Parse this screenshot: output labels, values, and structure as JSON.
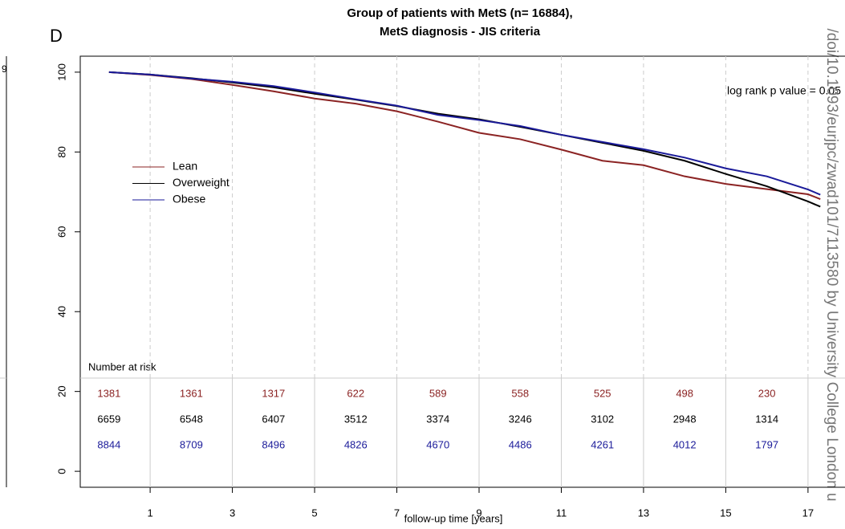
{
  "chart_data": {
    "type": "line",
    "panel_label": "D",
    "title": "Group of patients with MetS (n= 16884),",
    "subtitle": "MetS diagnosis - JIS criteria",
    "annotation": "log rank p value = 0.05",
    "x_label": "follow-up time [years]",
    "risk_table_title": "Number at risk",
    "x": [
      0,
      1,
      2,
      3,
      4,
      5,
      6,
      7,
      8,
      9,
      10,
      11,
      12,
      13,
      14,
      15,
      16,
      17,
      17.3
    ],
    "series": [
      {
        "name": "Lean",
        "color": "#8b2323",
        "values": [
          100,
          99.3,
          98.3,
          96.8,
          95.2,
          93.4,
          92.1,
          90.2,
          87.6,
          84.8,
          83.2,
          80.6,
          77.8,
          76.7,
          73.9,
          72,
          70.7,
          69.4,
          68.2
        ],
        "at_risk": [
          1381,
          1361,
          1317,
          622,
          589,
          558,
          525,
          498,
          230
        ]
      },
      {
        "name": "Overweight",
        "color": "#000000",
        "values": [
          100,
          99.4,
          98.5,
          97.4,
          96.2,
          94.6,
          93.1,
          91.5,
          89.6,
          88.2,
          86.3,
          84.3,
          82.3,
          80.3,
          77.8,
          74.5,
          71.4,
          67.6,
          66.3
        ],
        "at_risk": [
          6659,
          6548,
          6407,
          3512,
          3374,
          3246,
          3102,
          2948,
          1314
        ]
      },
      {
        "name": "Obese",
        "color": "#1a1a99",
        "values": [
          100,
          99.4,
          98.4,
          97.6,
          96.5,
          94.9,
          93.2,
          91.6,
          89.3,
          88,
          86.5,
          84.3,
          82.5,
          80.7,
          78.6,
          75.9,
          73.9,
          70.6,
          69.3
        ],
        "at_risk": [
          8844,
          8709,
          8496,
          4826,
          4670,
          4486,
          4261,
          4012,
          1797
        ]
      }
    ],
    "xlim": [
      -0.7,
      17.9
    ],
    "xticks": [
      1,
      3,
      5,
      7,
      9,
      11,
      13,
      15,
      17
    ],
    "ylim": [
      -4,
      104
    ],
    "yticks": [
      0,
      20,
      40,
      60,
      80,
      100
    ],
    "grid": true,
    "legend_position": "left"
  },
  "left_panel_fragment": "9",
  "watermark": "/doi/10.1093/eurjpc/zwad101/7113580 by University College London u"
}
